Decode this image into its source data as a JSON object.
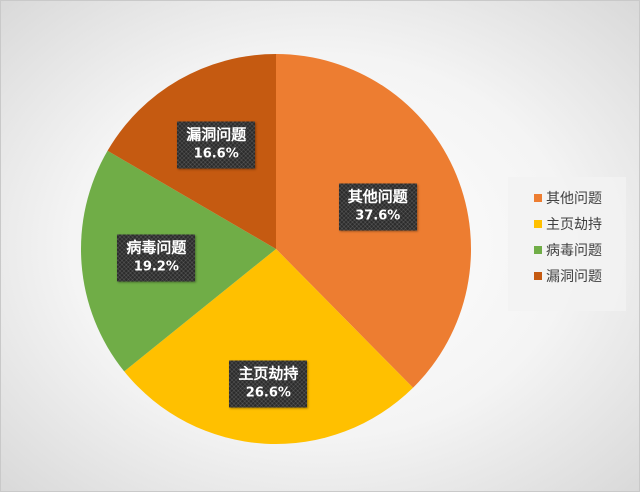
{
  "chart_data": {
    "type": "pie",
    "categories": [
      "其他问题",
      "主页劫持",
      "病毒问题",
      "漏洞问题"
    ],
    "values": [
      37.6,
      26.6,
      19.2,
      16.6
    ],
    "labels": [
      "37.6%",
      "26.6%",
      "19.2%",
      "16.6%"
    ],
    "colors": [
      "#ED7D31",
      "#FFC000",
      "#70AD47",
      "#C55A11"
    ],
    "start_angle_deg": 0,
    "direction": "clockwise",
    "legend": "right"
  }
}
